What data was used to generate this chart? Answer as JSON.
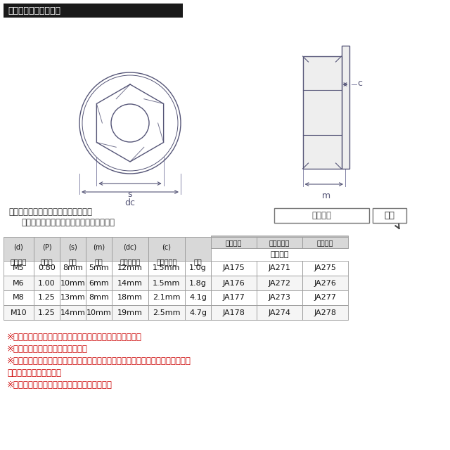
{
  "title_bar_text": "ラインアップ＆サイズ",
  "title_bar_bg": "#1a1a1a",
  "title_bar_text_color": "#ffffff",
  "bg_color": "#ffffff",
  "search_text1": "ストア内検索に商品番号を入力すると",
  "search_text2": "お探しの商品に素早くアクセスできます。",
  "search_box_label": "商品番号",
  "search_btn_label": "検索",
  "table_subheader": [
    "シルバー",
    "レインボー",
    "ゴールド"
  ],
  "table_toban": "当店品番",
  "col_headers": [
    "ネジ呼び",
    "ピッチ",
    "平径",
    "高さ",
    "フランジ径",
    "フランジ厉",
    "重量"
  ],
  "col_headers2": [
    "(d)",
    "(P)",
    "(s)",
    "(m)",
    "(dc)",
    "(c)",
    ""
  ],
  "table_data": [
    [
      "M5",
      "0.80",
      "8mm",
      "5mm",
      "12mm",
      "1.5mm",
      "1.0g",
      "JA175",
      "JA271",
      "JA275"
    ],
    [
      "M6",
      "1.00",
      "10mm",
      "6mm",
      "14mm",
      "1.5mm",
      "1.8g",
      "JA176",
      "JA272",
      "JA276"
    ],
    [
      "M8",
      "1.25",
      "13mm",
      "8mm",
      "18mm",
      "2.1mm",
      "4.1g",
      "JA177",
      "JA273",
      "JA277"
    ],
    [
      "M10",
      "1.25",
      "14mm",
      "10mm",
      "19mm",
      "2.5mm",
      "4.7g",
      "JA178",
      "JA274",
      "JA278"
    ]
  ],
  "notes": [
    "※記載のサイズ・重量は平均値です。予めご了承ください。",
    "※個体差により着色が異なります。",
    "※チタンはカジリや焼き付きの発生しやすい材質です。焼き付き防止ケミカル等の",
    "　併用をお勧めします。",
    "※ご注文確定後の商品のご変更はできません。"
  ],
  "note_color": "#cc0000",
  "table_border_color": "#999999",
  "table_header_bg": "#d8d8d8",
  "table_subheader_bg": "#bbbbbb",
  "diagram_line_color": "#555577",
  "dim_line_color": "#555577",
  "dim_line_color2": "#8888aa"
}
